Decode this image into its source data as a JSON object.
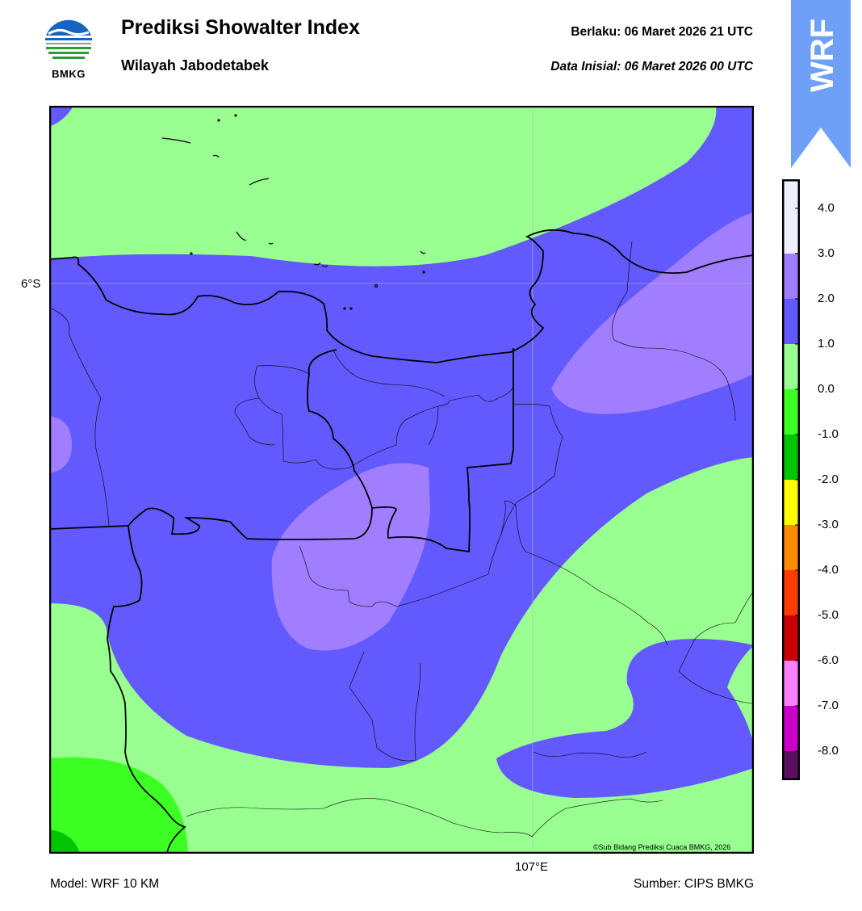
{
  "header": {
    "title": "Prediksi Showalter Index",
    "region": "Wilayah Jabodetabek",
    "valid_label": "Berlaku:  06 Maret 2026 21 UTC",
    "init_label": "Data Inisial:  06 Maret 2026 00 UTC"
  },
  "logo": {
    "name": "bmkg-logo",
    "text": "BMKG"
  },
  "banner": {
    "text": "WRF",
    "color": "#6ea0f7"
  },
  "map": {
    "lat_label": "6°S",
    "lon_label": "107°E",
    "credit": "©Sub Bidang Prediksi Cuaca BMKG, 2026"
  },
  "footer": {
    "model": "Model: WRF 10 KM",
    "source": "Sumber: CIPS BMKG"
  },
  "colorbar": {
    "ticks": [
      "4.0",
      "3.0",
      "2.0",
      "1.0",
      "0.0",
      "-1.0",
      "-2.0",
      "-3.0",
      "-4.0",
      "-5.0",
      "-6.0",
      "-7.0",
      "-8.0"
    ],
    "colors": [
      "#eef0ff",
      "#a07eff",
      "#6259ff",
      "#98ff90",
      "#3cff23",
      "#00c500",
      "#ffff00",
      "#ff8c00",
      "#ff3c00",
      "#c80000",
      "#ff80ff",
      "#c800c8",
      "#5a1060"
    ]
  }
}
